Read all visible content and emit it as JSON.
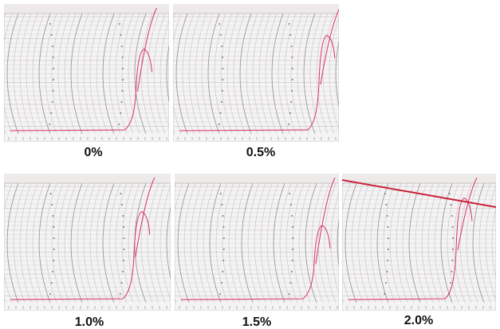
{
  "panels": [
    {
      "label": "0%"
    },
    {
      "label": "0.5%"
    },
    {
      "label": "1.0%"
    },
    {
      "label": "1.5%"
    },
    {
      "label": "2.0%"
    }
  ]
}
